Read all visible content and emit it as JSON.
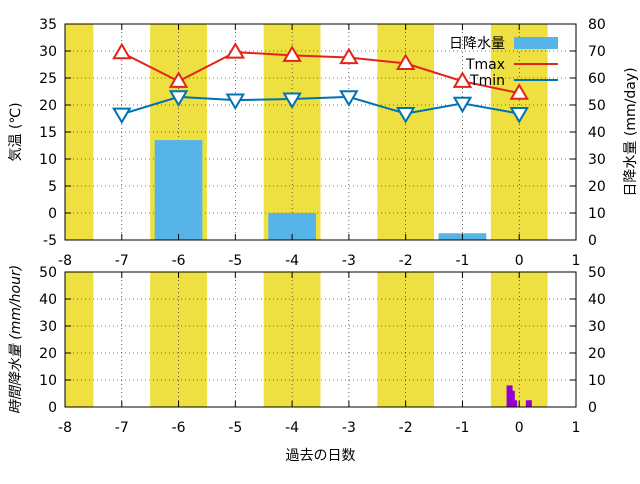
{
  "chart_data": [
    {
      "type": "bar+line",
      "xlim": [
        -8,
        1
      ],
      "xticks": [
        -8,
        -7,
        -6,
        -5,
        -4,
        -3,
        -2,
        -1,
        0,
        1
      ],
      "ylim_left": [
        -5,
        35
      ],
      "yticks_left": [
        -5,
        0,
        5,
        10,
        15,
        20,
        25,
        30,
        35
      ],
      "ylim_right": [
        0,
        80
      ],
      "yticks_right": [
        0,
        10,
        20,
        30,
        40,
        50,
        60,
        70,
        80
      ],
      "ylabel_left": "気温 (℃)",
      "ylabel_right": "日降水量 (mm/day)",
      "grid": true,
      "legend_position": "top-right",
      "yellow_bands": [
        [
          -8.0,
          -7.5
        ],
        [
          -6.5,
          -5.5
        ],
        [
          -4.5,
          -3.5
        ],
        [
          -2.5,
          -1.5
        ],
        [
          -0.5,
          0.5
        ]
      ],
      "series": [
        {
          "name": "日降水量",
          "kind": "bar",
          "axis": "right",
          "color": "#56b4e9",
          "x": [
            -7,
            -6,
            -5,
            -4,
            -3,
            -2,
            -1,
            0
          ],
          "values": [
            0,
            37,
            0,
            10,
            0,
            0,
            2.5,
            0
          ]
        },
        {
          "name": "Tmax",
          "kind": "line",
          "axis": "left",
          "color": "#e2231a",
          "marker": "triangle-up",
          "x": [
            -7,
            -6,
            -5,
            -4,
            -3,
            -2,
            -1,
            0
          ],
          "values": [
            29.7,
            24.4,
            29.8,
            29.2,
            28.8,
            27.7,
            24.4,
            22.2
          ]
        },
        {
          "name": "Tmin",
          "kind": "line",
          "axis": "left",
          "color": "#0072b2",
          "marker": "triangle-down",
          "x": [
            -7,
            -6,
            -5,
            -4,
            -3,
            -2,
            -1,
            0
          ],
          "values": [
            18.3,
            21.5,
            20.9,
            21.1,
            21.5,
            18.4,
            20.3,
            18.4
          ]
        }
      ]
    },
    {
      "type": "bar",
      "xlim": [
        -8,
        1
      ],
      "xticks": [
        -8,
        -7,
        -6,
        -5,
        -4,
        -3,
        -2,
        -1,
        0,
        1
      ],
      "ylim": [
        0,
        50
      ],
      "yticks": [
        0,
        10,
        20,
        30,
        40,
        50
      ],
      "ylabel": "時間降水量 (mm/hour)",
      "xlabel": "過去の日数",
      "grid": true,
      "yellow_bands": [
        [
          -8.0,
          -7.5
        ],
        [
          -6.5,
          -5.5
        ],
        [
          -4.5,
          -3.5
        ],
        [
          -2.5,
          -1.5
        ],
        [
          -0.5,
          0.5
        ]
      ],
      "series": [
        {
          "name": "",
          "color": "#9400d3",
          "x": [
            -0.17,
            -0.13,
            -0.09,
            0.17
          ],
          "values": [
            8,
            6,
            2.5,
            2.5
          ]
        }
      ]
    }
  ]
}
